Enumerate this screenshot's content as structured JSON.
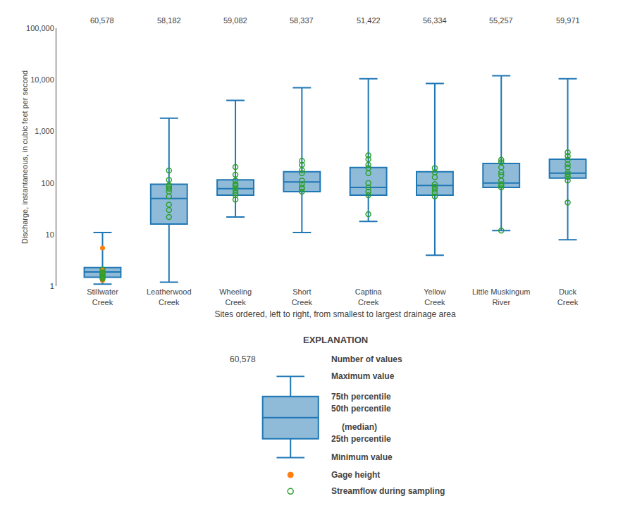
{
  "chart_data": {
    "type": "box",
    "categories": [
      "Stillwater\nCreek",
      "Leatherwood\nCreek",
      "Wheeling\nCreek",
      "Short\nCreek",
      "Captina\nCreek",
      "Yellow\nCreek",
      "Little Muskingum\nRiver",
      "Duck\nCreek"
    ],
    "n_values": [
      "60,578",
      "58,182",
      "59,082",
      "58,337",
      "51,422",
      "56,334",
      "55,257",
      "59,971"
    ],
    "boxes": [
      {
        "min": 1.1,
        "q1": 1.5,
        "median": 1.9,
        "q3": 2.3,
        "max": 11.0
      },
      {
        "min": 1.2,
        "q1": 16,
        "median": 50,
        "q3": 95,
        "max": 1800
      },
      {
        "min": 22,
        "q1": 58,
        "median": 78,
        "q3": 115,
        "max": 4000
      },
      {
        "min": 11,
        "q1": 68,
        "median": 105,
        "q3": 165,
        "max": 7000
      },
      {
        "min": 18,
        "q1": 58,
        "median": 82,
        "q3": 200,
        "max": 10500
      },
      {
        "min": 4,
        "q1": 58,
        "median": 90,
        "q3": 165,
        "max": 8500
      },
      {
        "min": 12,
        "q1": 82,
        "median": 100,
        "q3": 240,
        "max": 12000
      },
      {
        "min": 8,
        "q1": 125,
        "median": 155,
        "q3": 290,
        "max": 10500
      }
    ],
    "series": [
      {
        "name": "Gage height",
        "type": "scatter",
        "marker": "filled",
        "values": [
          [
            1.3,
            1.55,
            1.65,
            1.9,
            2.05,
            5.5
          ],
          [],
          [],
          [],
          [],
          [],
          [],
          []
        ]
      },
      {
        "name": "Streamflow during sampling",
        "type": "scatter",
        "marker": "open",
        "values": [
          [
            1.4,
            1.5,
            1.55,
            1.65,
            1.75,
            1.85,
            2.1
          ],
          [
            22,
            30,
            38,
            55,
            68,
            78,
            85,
            90,
            115,
            175
          ],
          [
            48,
            58,
            64,
            72,
            82,
            90,
            95,
            112,
            145,
            205
          ],
          [
            68,
            78,
            82,
            95,
            112,
            155,
            178,
            225,
            270
          ],
          [
            25,
            58,
            68,
            82,
            100,
            155,
            195,
            225,
            290,
            345
          ],
          [
            55,
            65,
            75,
            85,
            95,
            130,
            160,
            195
          ],
          [
            12,
            82,
            90,
            95,
            112,
            142,
            162,
            202,
            252,
            282
          ],
          [
            42,
            112,
            132,
            148,
            162,
            202,
            232,
            282,
            332,
            392
          ]
        ]
      }
    ],
    "ylabel": "Discharge, instantaneous, in cubic feet per second",
    "xlabel": "Sites ordered, left to right, from smallest to largest drainage area",
    "log": "y",
    "ylim": [
      1,
      100000
    ],
    "yticks": [
      1,
      10,
      100,
      {
        "value": 1000,
        "label": "1,000"
      },
      {
        "value": 10000,
        "label": "10,000"
      },
      {
        "value": 100000,
        "label": "100,000"
      }
    ],
    "grid": false,
    "explanation": {
      "title": "EXPLANATION",
      "n_value": "60,578",
      "n_label": "Number of values",
      "max_label": "Maximum value",
      "q3_label": "75th percentile",
      "median_label": "50th percentile",
      "median_note": "(median)",
      "q1_label": "25th percentile",
      "min_label": "Minimum value"
    }
  }
}
